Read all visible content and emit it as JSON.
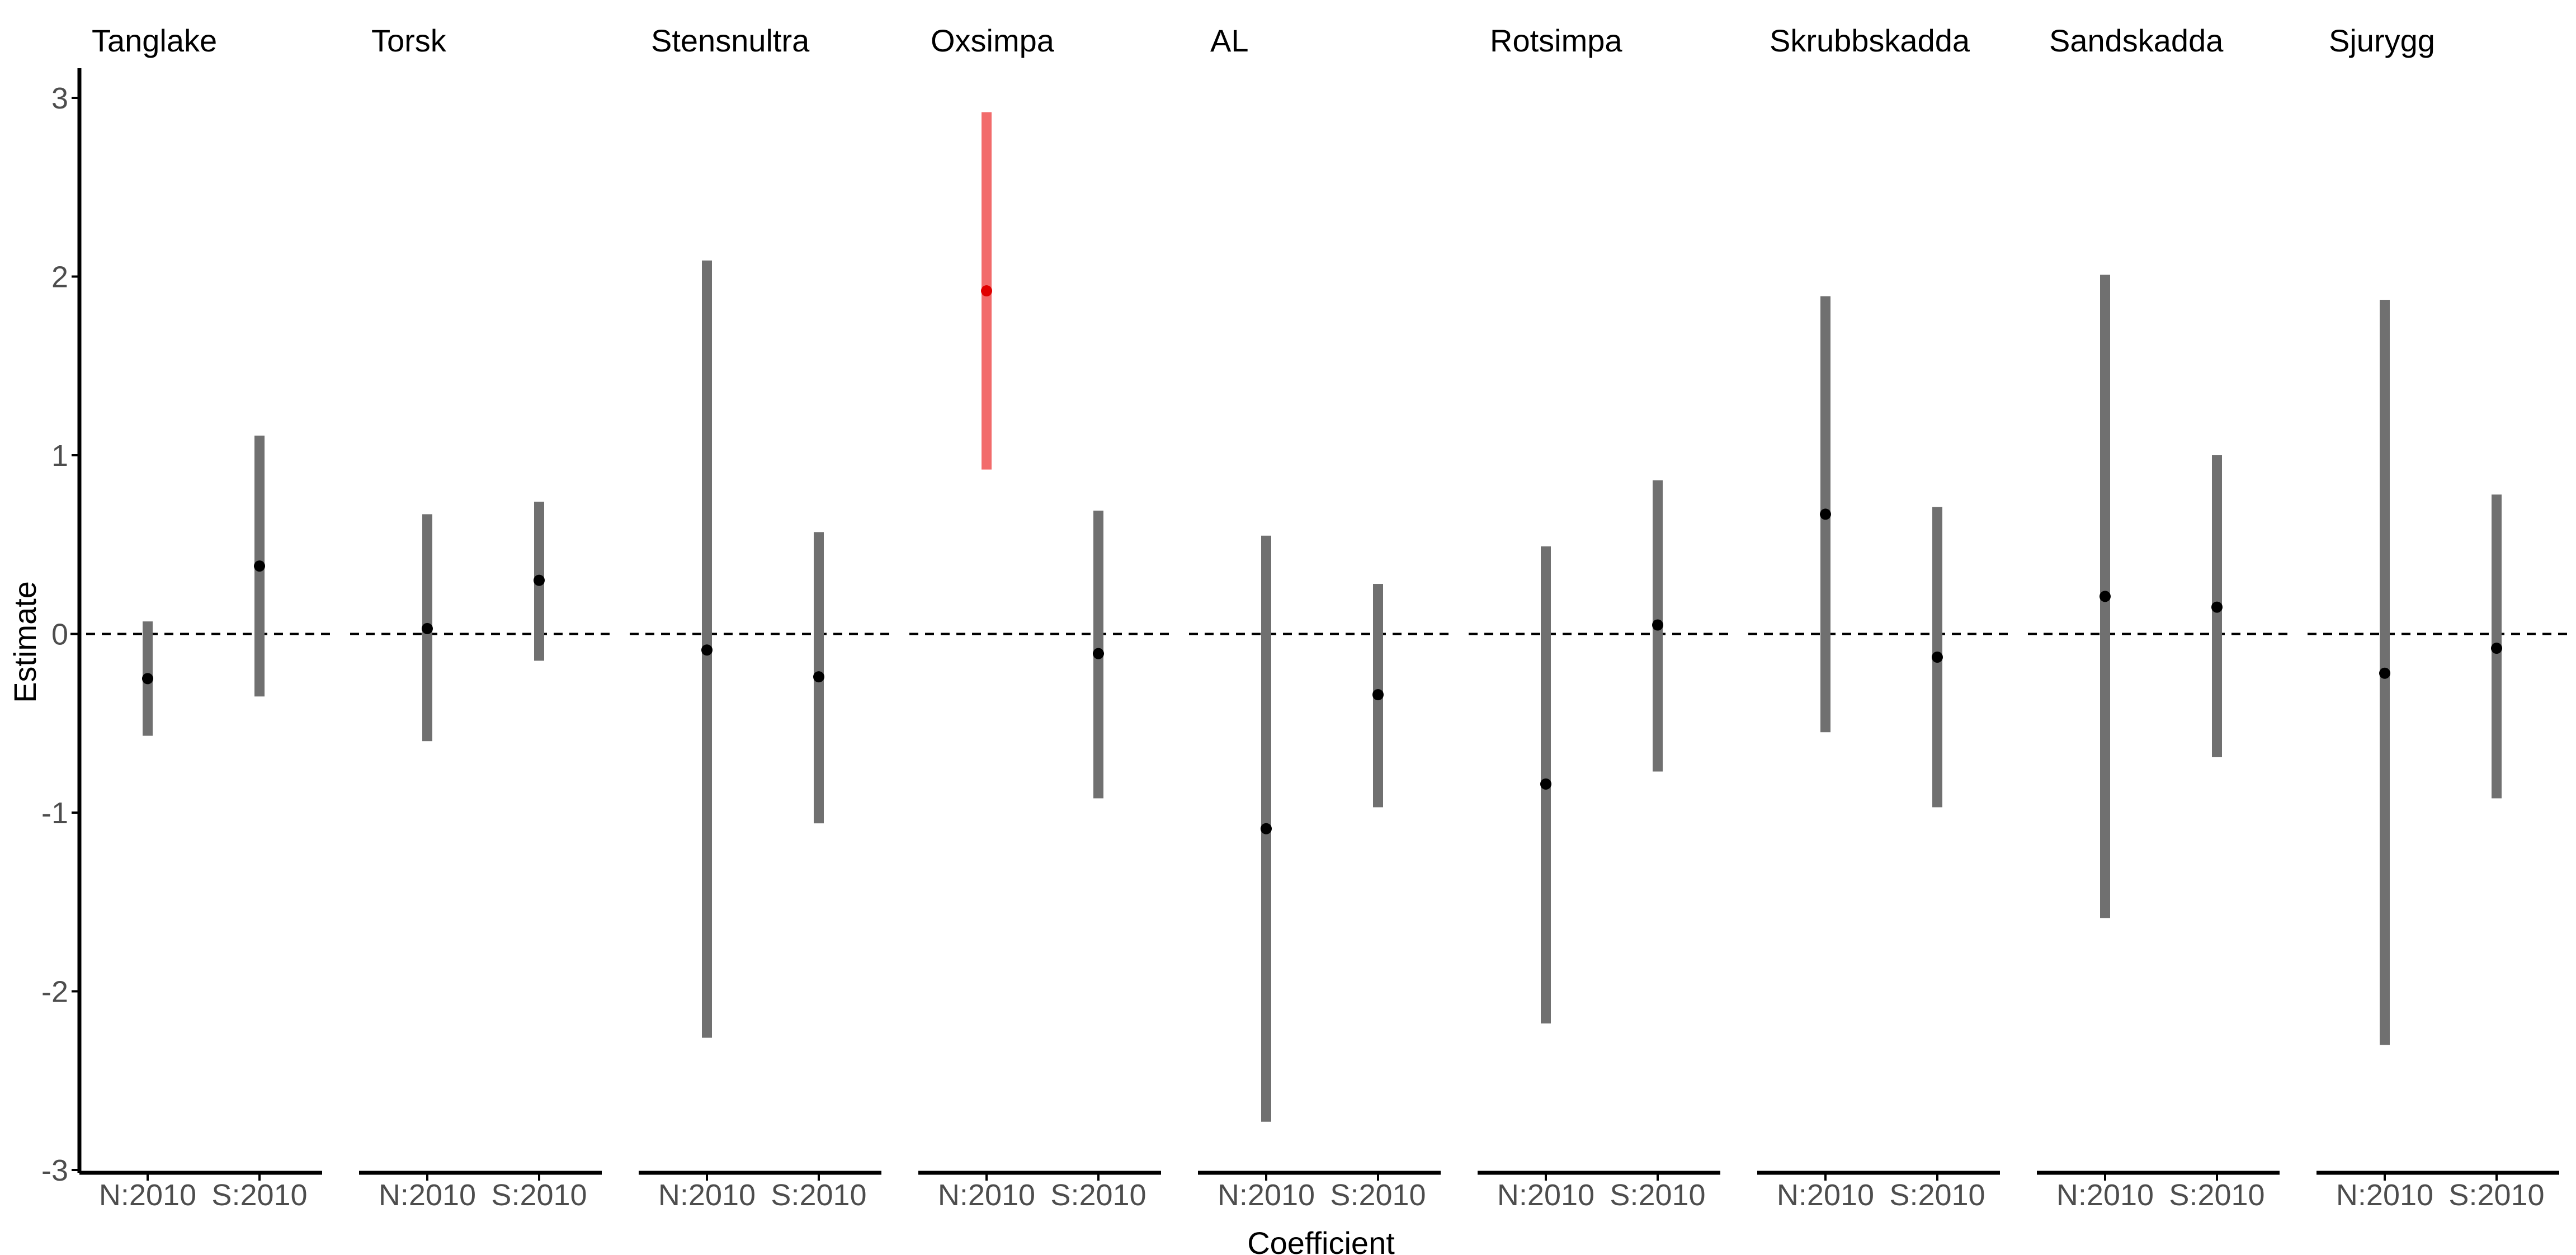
{
  "chart_data": {
    "type": "interval",
    "xlabel": "Coefficient",
    "ylabel": "Estimate",
    "ylim": [
      -3,
      3.2
    ],
    "yticks": [
      "-3",
      "-2",
      "-1",
      "0",
      "1",
      "2",
      "3"
    ],
    "reference_line": 0,
    "categories": [
      "N:2010",
      "S:2010"
    ],
    "colors": {
      "default": "#707070",
      "default_point": "#000000",
      "highlight": "#f26b6b",
      "highlight_point": "#e00000",
      "axis": "#000000",
      "tick_text": "#4d4d4d"
    },
    "panels": [
      {
        "title": "Tanglake",
        "points": [
          {
            "category": "N:2010",
            "estimate": -0.25,
            "lower": -0.57,
            "upper": 0.07,
            "highlight": false
          },
          {
            "category": "S:2010",
            "estimate": 0.38,
            "lower": -0.35,
            "upper": 1.11,
            "highlight": false
          }
        ]
      },
      {
        "title": "Torsk",
        "points": [
          {
            "category": "N:2010",
            "estimate": 0.03,
            "lower": -0.6,
            "upper": 0.67,
            "highlight": false
          },
          {
            "category": "S:2010",
            "estimate": 0.3,
            "lower": -0.15,
            "upper": 0.74,
            "highlight": false
          }
        ]
      },
      {
        "title": "Stensnultra",
        "points": [
          {
            "category": "N:2010",
            "estimate": -0.09,
            "lower": -2.26,
            "upper": 2.09,
            "highlight": false
          },
          {
            "category": "S:2010",
            "estimate": -0.24,
            "lower": -1.06,
            "upper": 0.57,
            "highlight": false
          }
        ]
      },
      {
        "title": "Oxsimpa",
        "points": [
          {
            "category": "N:2010",
            "estimate": 1.92,
            "lower": 0.92,
            "upper": 2.92,
            "highlight": true
          },
          {
            "category": "S:2010",
            "estimate": -0.11,
            "lower": -0.92,
            "upper": 0.69,
            "highlight": false
          }
        ]
      },
      {
        "title": "AL",
        "points": [
          {
            "category": "N:2010",
            "estimate": -1.09,
            "lower": -2.73,
            "upper": 0.55,
            "highlight": false
          },
          {
            "category": "S:2010",
            "estimate": -0.34,
            "lower": -0.97,
            "upper": 0.28,
            "highlight": false
          }
        ]
      },
      {
        "title": "Rotsimpa",
        "points": [
          {
            "category": "N:2010",
            "estimate": -0.84,
            "lower": -2.18,
            "upper": 0.49,
            "highlight": false
          },
          {
            "category": "S:2010",
            "estimate": 0.05,
            "lower": -0.77,
            "upper": 0.86,
            "highlight": false
          }
        ]
      },
      {
        "title": "Skrubbskadda",
        "points": [
          {
            "category": "N:2010",
            "estimate": 0.67,
            "lower": -0.55,
            "upper": 1.89,
            "highlight": false
          },
          {
            "category": "S:2010",
            "estimate": -0.13,
            "lower": -0.97,
            "upper": 0.71,
            "highlight": false
          }
        ]
      },
      {
        "title": "Sandskadda",
        "points": [
          {
            "category": "N:2010",
            "estimate": 0.21,
            "lower": -1.59,
            "upper": 2.01,
            "highlight": false
          },
          {
            "category": "S:2010",
            "estimate": 0.15,
            "lower": -0.69,
            "upper": 1.0,
            "highlight": false
          }
        ]
      },
      {
        "title": "Sjurygg",
        "points": [
          {
            "category": "N:2010",
            "estimate": -0.22,
            "lower": -2.3,
            "upper": 1.87,
            "highlight": false
          },
          {
            "category": "S:2010",
            "estimate": -0.08,
            "lower": -0.92,
            "upper": 0.78,
            "highlight": false
          }
        ]
      }
    ]
  }
}
